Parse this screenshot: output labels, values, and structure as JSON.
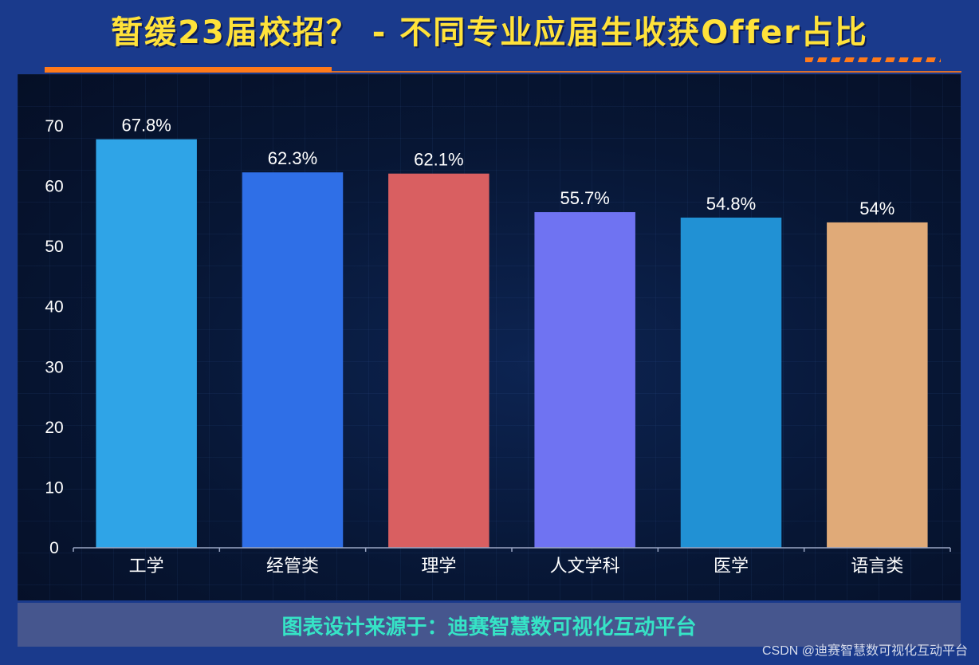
{
  "header": {
    "title": "暂缓23届校招？ - 不同专业应届生收获Offer占比"
  },
  "footer": {
    "source_text": "图表设计来源于：迪赛智慧数可视化互动平台"
  },
  "watermark": "CSDN @迪赛智慧数可视化互动平台",
  "colors": {
    "title": "#ffe23a",
    "accent_orange": "#ff7a1a",
    "footer_text": "#36e3c6",
    "background": "#1a3a8c"
  },
  "chart_data": {
    "type": "bar",
    "categories": [
      "工学",
      "经管类",
      "理学",
      "人文学科",
      "医学",
      "语言类"
    ],
    "values": [
      67.8,
      62.3,
      62.1,
      55.7,
      54.8,
      54
    ],
    "data_labels": [
      "67.8%",
      "62.3%",
      "62.1%",
      "55.7%",
      "54.8%",
      "54%"
    ],
    "bar_colors": [
      "#2fa4e7",
      "#2f6fe7",
      "#d95f61",
      "#6f73f2",
      "#2191d4",
      "#e0aa78"
    ],
    "ylim": [
      0,
      70
    ],
    "yticks": [
      0,
      10,
      20,
      30,
      40,
      50,
      60,
      70
    ],
    "grid": false,
    "legend": "none"
  }
}
